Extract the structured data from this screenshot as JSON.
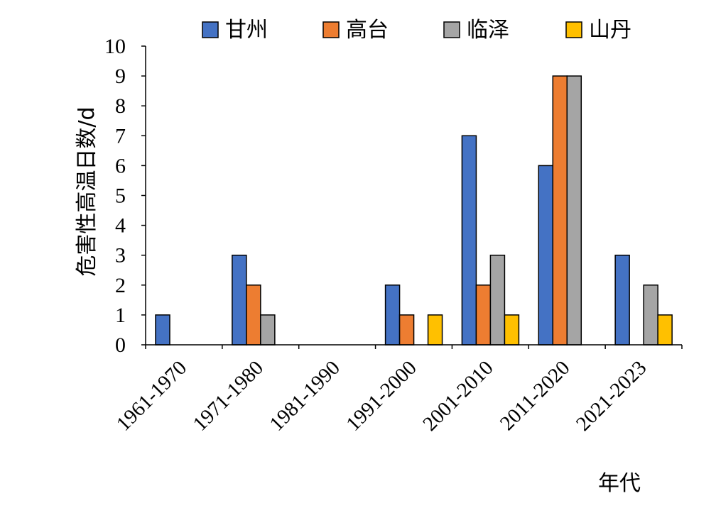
{
  "chart_data": {
    "type": "bar",
    "title": "",
    "xlabel": "年代",
    "ylabel": "危害性高温日数/d",
    "ylim": [
      0,
      10
    ],
    "yticks": [
      "0",
      "1",
      "2",
      "3",
      "4",
      "5",
      "6",
      "7",
      "8",
      "9",
      "10"
    ],
    "grid": false,
    "legend_position": "top",
    "categories": [
      "1961-1970",
      "1971-1980",
      "1981-1990",
      "1991-2000",
      "2001-2010",
      "2011-2020",
      "2021-2023"
    ],
    "series": [
      {
        "name": "甘州",
        "color": "#4472C4",
        "values": [
          1,
          3,
          0,
          2,
          7,
          6,
          3
        ]
      },
      {
        "name": "高台",
        "color": "#ED7D31",
        "values": [
          0,
          2,
          0,
          1,
          2,
          9,
          0
        ]
      },
      {
        "name": "临泽",
        "color": "#A5A5A5",
        "values": [
          0,
          1,
          0,
          0,
          3,
          9,
          2
        ]
      },
      {
        "name": "山丹",
        "color": "#FFC000",
        "values": [
          0,
          0,
          0,
          1,
          1,
          0,
          1
        ]
      }
    ]
  }
}
